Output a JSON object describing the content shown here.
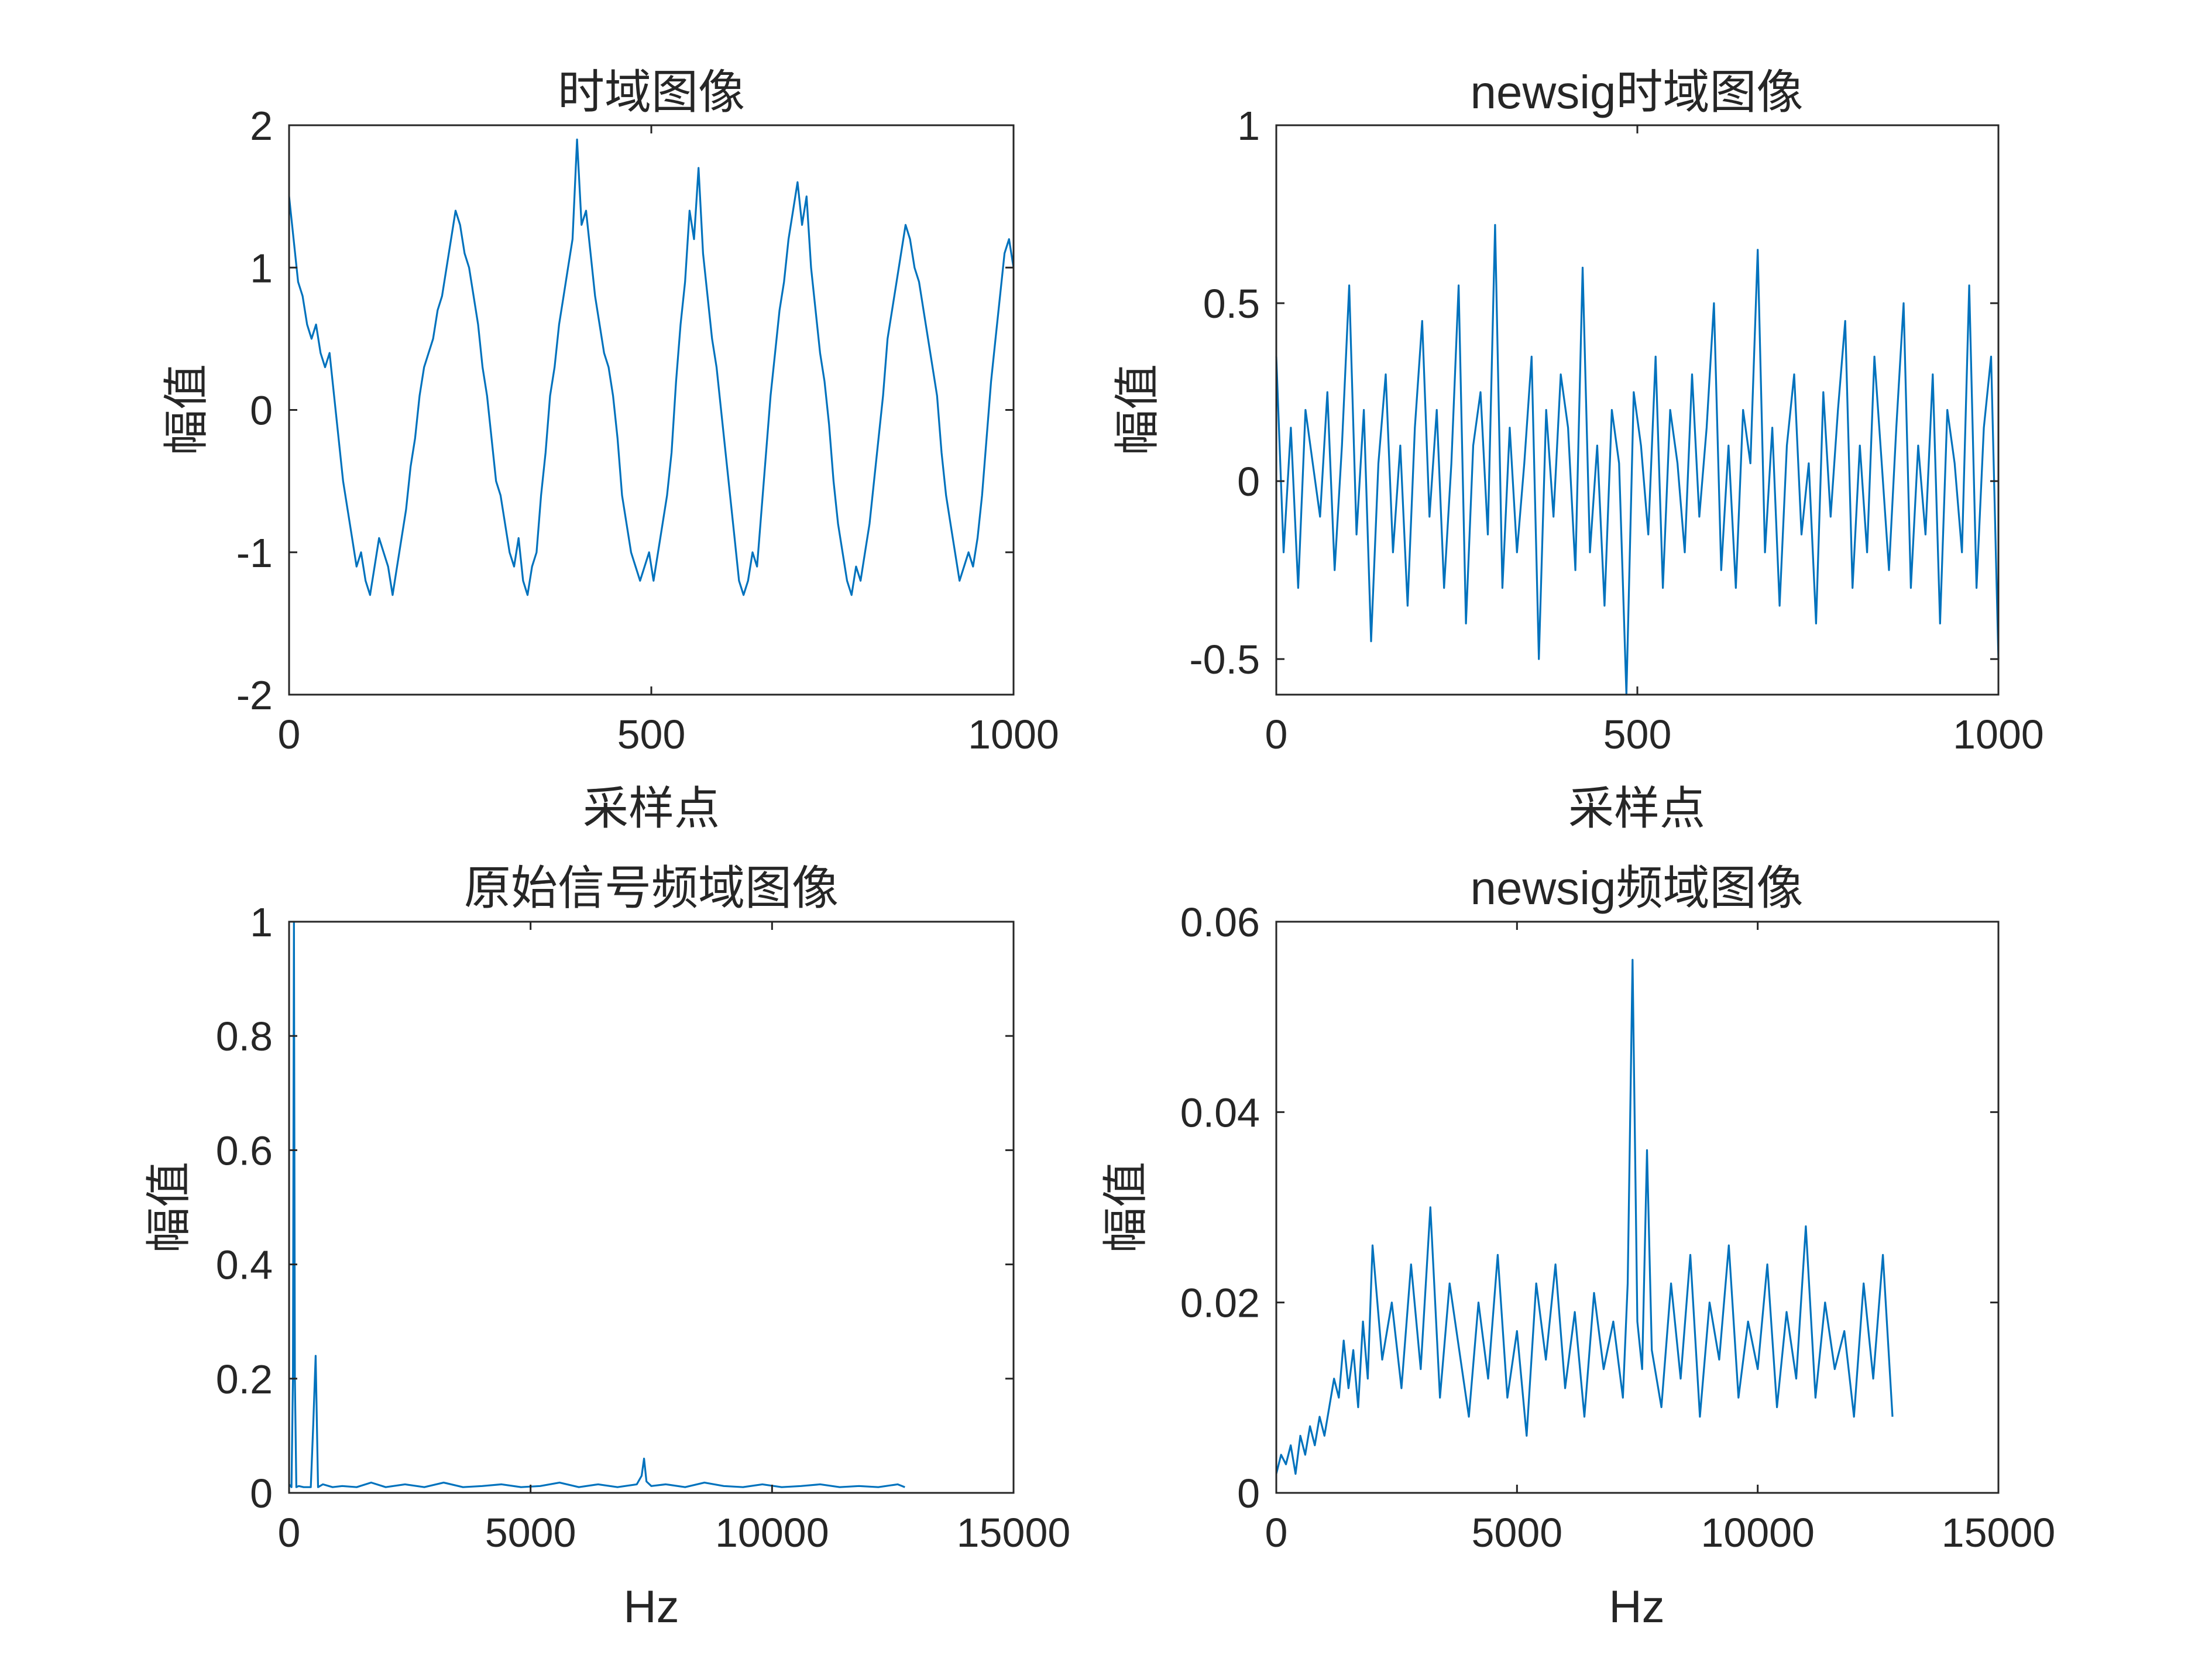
{
  "figure": {
    "colors": {
      "series": "#0072bd",
      "axes": "#262626",
      "background": "#ffffff"
    }
  },
  "chart_data": [
    {
      "id": "p1",
      "type": "line",
      "title": "时域图像",
      "xlabel": "采样点",
      "ylabel": "幅值",
      "xlim": [
        0,
        1000
      ],
      "ylim": [
        -2,
        2
      ],
      "xticks": [
        0,
        500,
        1000
      ],
      "xtick_labels": [
        "0",
        "500",
        "1000"
      ],
      "yticks": [
        -2,
        -1,
        0,
        1,
        2
      ],
      "ytick_labels": [
        "-2",
        "-1",
        "0",
        "1",
        "2"
      ],
      "grid": false,
      "legend": "none",
      "series": [
        {
          "values": [
            1.5,
            1.2,
            0.9,
            0.8,
            0.6,
            0.5,
            0.6,
            0.4,
            0.3,
            0.4,
            0.1,
            -0.2,
            -0.5,
            -0.7,
            -0.9,
            -1.1,
            -1.0,
            -1.2,
            -1.3,
            -1.1,
            -0.9,
            -1.0,
            -1.1,
            -1.3,
            -1.1,
            -0.9,
            -0.7,
            -0.4,
            -0.2,
            0.1,
            0.3,
            0.4,
            0.5,
            0.7,
            0.8,
            1.0,
            1.2,
            1.4,
            1.3,
            1.1,
            1.0,
            0.8,
            0.6,
            0.3,
            0.1,
            -0.2,
            -0.5,
            -0.6,
            -0.8,
            -1.0,
            -1.1,
            -0.9,
            -1.2,
            -1.3,
            -1.1,
            -1.0,
            -0.6,
            -0.3,
            0.1,
            0.3,
            0.6,
            0.8,
            1.0,
            1.2,
            1.9,
            1.3,
            1.4,
            1.1,
            0.8,
            0.6,
            0.4,
            0.3,
            0.1,
            -0.2,
            -0.6,
            -0.8,
            -1.0,
            -1.1,
            -1.2,
            -1.1,
            -1.0,
            -1.2,
            -1.0,
            -0.8,
            -0.6,
            -0.3,
            0.2,
            0.6,
            0.9,
            1.4,
            1.2,
            1.7,
            1.1,
            0.8,
            0.5,
            0.3,
            0.0,
            -0.3,
            -0.6,
            -0.9,
            -1.2,
            -1.3,
            -1.2,
            -1.0,
            -1.1,
            -0.7,
            -0.3,
            0.1,
            0.4,
            0.7,
            0.9,
            1.2,
            1.4,
            1.6,
            1.3,
            1.5,
            1.0,
            0.7,
            0.4,
            0.2,
            -0.1,
            -0.5,
            -0.8,
            -1.0,
            -1.2,
            -1.3,
            -1.1,
            -1.2,
            -1.0,
            -0.8,
            -0.5,
            -0.2,
            0.1,
            0.5,
            0.7,
            0.9,
            1.1,
            1.3,
            1.2,
            1.0,
            0.9,
            0.7,
            0.5,
            0.3,
            0.1,
            -0.3,
            -0.6,
            -0.8,
            -1.0,
            -1.2,
            -1.1,
            -1.0,
            -1.1,
            -0.9,
            -0.6,
            -0.2,
            0.2,
            0.5,
            0.8,
            1.1,
            1.2,
            1.0
          ]
        }
      ]
    },
    {
      "id": "p2",
      "type": "line",
      "title": "newsig时域图像",
      "xlabel": "采样点",
      "ylabel": "幅值",
      "xlim": [
        0,
        1000
      ],
      "ylim": [
        -0.6,
        1
      ],
      "xticks": [
        0,
        500,
        1000
      ],
      "xtick_labels": [
        "0",
        "500",
        "1000"
      ],
      "yticks": [
        -0.5,
        0,
        0.5,
        1
      ],
      "ytick_labels": [
        "-0.5",
        "0",
        "0.5",
        "1"
      ],
      "grid": false,
      "legend": "none",
      "series": [
        {
          "values": [
            0.35,
            -0.2,
            0.15,
            -0.3,
            0.2,
            0.05,
            -0.1,
            0.25,
            -0.25,
            0.1,
            0.55,
            -0.15,
            0.2,
            -0.45,
            0.05,
            0.3,
            -0.2,
            0.1,
            -0.35,
            0.15,
            0.45,
            -0.1,
            0.2,
            -0.3,
            0.05,
            0.55,
            -0.4,
            0.1,
            0.25,
            -0.15,
            0.72,
            -0.3,
            0.15,
            -0.2,
            0.05,
            0.35,
            -0.5,
            0.2,
            -0.1,
            0.3,
            0.15,
            -0.25,
            0.6,
            -0.2,
            0.1,
            -0.35,
            0.2,
            0.05,
            -0.6,
            0.25,
            0.1,
            -0.15,
            0.35,
            -0.3,
            0.2,
            0.05,
            -0.2,
            0.3,
            -0.1,
            0.15,
            0.5,
            -0.25,
            0.1,
            -0.3,
            0.2,
            0.05,
            0.65,
            -0.2,
            0.15,
            -0.35,
            0.1,
            0.3,
            -0.15,
            0.05,
            -0.4,
            0.25,
            -0.1,
            0.2,
            0.45,
            -0.3,
            0.1,
            -0.2,
            0.35,
            0.05,
            -0.25,
            0.15,
            0.5,
            -0.3,
            0.1,
            -0.15,
            0.3,
            -0.4,
            0.2,
            0.05,
            -0.2,
            0.55,
            -0.3,
            0.15,
            0.35,
            -0.5
          ]
        }
      ]
    },
    {
      "id": "p3",
      "type": "line",
      "title": "原始信号频域图像",
      "xlabel": "Hz",
      "ylabel": "幅值",
      "xlim": [
        0,
        15000
      ],
      "ylim": [
        0,
        1
      ],
      "xticks": [
        0,
        5000,
        10000,
        15000
      ],
      "xtick_labels": [
        "0",
        "5000",
        "10000",
        "15000"
      ],
      "yticks": [
        0,
        0.2,
        0.4,
        0.6,
        0.8,
        1
      ],
      "ytick_labels": [
        "0",
        "0.2",
        "0.4",
        "0.6",
        "0.8",
        "1"
      ],
      "grid": false,
      "legend": "none",
      "series": [
        {
          "x": [
            0,
            50,
            80,
            100,
            120,
            150,
            200,
            300,
            450,
            500,
            550,
            600,
            700,
            900,
            1100,
            1400,
            1700,
            2000,
            2400,
            2800,
            3200,
            3600,
            4000,
            4400,
            4800,
            5200,
            5600,
            6000,
            6400,
            6800,
            7200,
            7300,
            7350,
            7400,
            7500,
            7800,
            8200,
            8600,
            9000,
            9400,
            9800,
            10200,
            10600,
            11000,
            11400,
            11800,
            12200,
            12600,
            12750
          ],
          "values": [
            0.015,
            0.01,
            0.2,
            1.0,
            0.2,
            0.01,
            0.012,
            0.01,
            0.01,
            0.12,
            0.24,
            0.01,
            0.015,
            0.01,
            0.012,
            0.01,
            0.018,
            0.01,
            0.015,
            0.01,
            0.018,
            0.01,
            0.012,
            0.015,
            0.01,
            0.012,
            0.018,
            0.01,
            0.015,
            0.01,
            0.015,
            0.03,
            0.06,
            0.02,
            0.012,
            0.015,
            0.01,
            0.018,
            0.012,
            0.01,
            0.015,
            0.01,
            0.012,
            0.015,
            0.01,
            0.012,
            0.01,
            0.015,
            0.01
          ]
        }
      ]
    },
    {
      "id": "p4",
      "type": "line",
      "title": "newsig频域图像",
      "xlabel": "Hz",
      "ylabel": "幅值",
      "xlim": [
        0,
        15000
      ],
      "ylim": [
        0,
        0.06
      ],
      "xticks": [
        0,
        5000,
        10000,
        15000
      ],
      "xtick_labels": [
        "0",
        "5000",
        "10000",
        "15000"
      ],
      "yticks": [
        0,
        0.02,
        0.04,
        0.06
      ],
      "ytick_labels": [
        "0",
        "0.02",
        "0.04",
        "0.06"
      ],
      "grid": false,
      "legend": "none",
      "series": [
        {
          "x": [
            0,
            100,
            200,
            300,
            400,
            500,
            600,
            700,
            800,
            900,
            1000,
            1100,
            1200,
            1300,
            1400,
            1500,
            1600,
            1700,
            1800,
            1900,
            2000,
            2200,
            2400,
            2600,
            2800,
            3000,
            3200,
            3400,
            3600,
            3800,
            4000,
            4200,
            4400,
            4600,
            4800,
            5000,
            5200,
            5400,
            5600,
            5800,
            6000,
            6200,
            6400,
            6600,
            6800,
            7000,
            7200,
            7300,
            7400,
            7500,
            7600,
            7700,
            7800,
            8000,
            8200,
            8400,
            8600,
            8800,
            9000,
            9200,
            9400,
            9600,
            9800,
            10000,
            10200,
            10400,
            10600,
            10800,
            11000,
            11200,
            11400,
            11600,
            11800,
            12000,
            12200,
            12400,
            12600,
            12800
          ],
          "values": [
            0.002,
            0.004,
            0.003,
            0.005,
            0.002,
            0.006,
            0.004,
            0.007,
            0.005,
            0.008,
            0.006,
            0.009,
            0.012,
            0.01,
            0.016,
            0.011,
            0.015,
            0.009,
            0.018,
            0.012,
            0.026,
            0.014,
            0.02,
            0.011,
            0.024,
            0.013,
            0.03,
            0.01,
            0.022,
            0.015,
            0.008,
            0.02,
            0.012,
            0.025,
            0.01,
            0.017,
            0.006,
            0.022,
            0.014,
            0.024,
            0.011,
            0.019,
            0.008,
            0.021,
            0.013,
            0.018,
            0.01,
            0.022,
            0.056,
            0.018,
            0.013,
            0.036,
            0.015,
            0.009,
            0.022,
            0.012,
            0.025,
            0.008,
            0.02,
            0.014,
            0.026,
            0.01,
            0.018,
            0.013,
            0.024,
            0.009,
            0.019,
            0.012,
            0.028,
            0.01,
            0.02,
            0.013,
            0.017,
            0.008,
            0.022,
            0.012,
            0.025,
            0.008
          ]
        }
      ]
    }
  ]
}
